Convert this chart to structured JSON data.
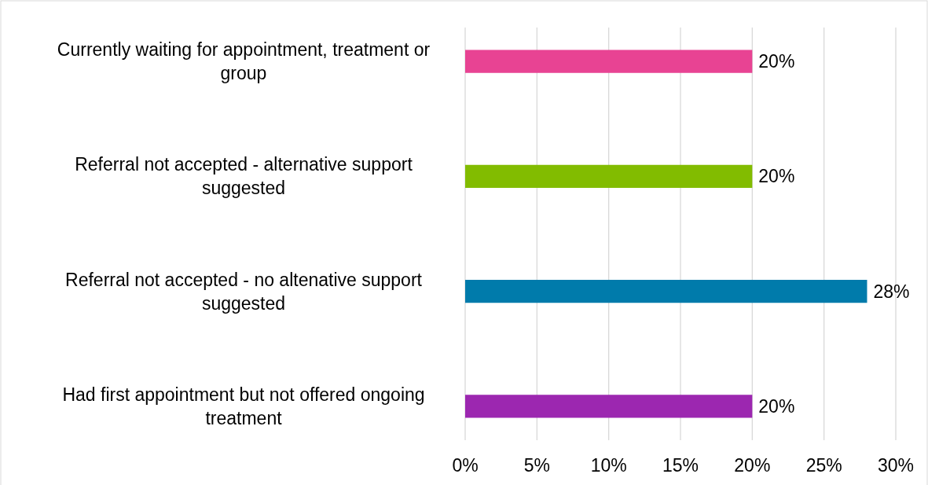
{
  "chart_data": {
    "type": "bar",
    "orientation": "horizontal",
    "categories": [
      "Currently waiting for appointment, treatment or group",
      "Referral not accepted - alternative support suggested",
      "Referral not accepted - no altenative support suggested",
      "Had first appointment but not offered ongoing treatment"
    ],
    "values": [
      20,
      20,
      28,
      20
    ],
    "colors": [
      "#e84393",
      "#82bc00",
      "#007bab",
      "#9c27b0"
    ],
    "value_labels": [
      "20%",
      "20%",
      "28%",
      "20%"
    ],
    "xlim": [
      0,
      30
    ],
    "xticks": [
      {
        "value": 0,
        "label": "0%"
      },
      {
        "value": 5,
        "label": "5%"
      },
      {
        "value": 10,
        "label": "10%"
      },
      {
        "value": 15,
        "label": "15%"
      },
      {
        "value": 20,
        "label": "20%"
      },
      {
        "value": 25,
        "label": "25%"
      },
      {
        "value": 30,
        "label": "30%"
      }
    ],
    "grid": "x"
  }
}
